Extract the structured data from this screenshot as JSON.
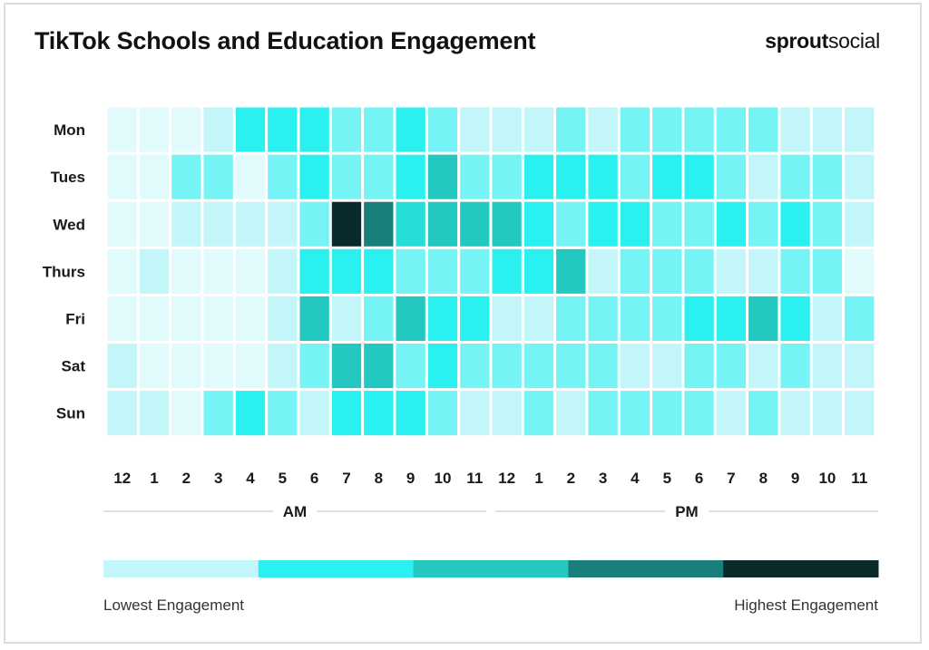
{
  "title": "TikTok Schools and Education Engagement",
  "brand": {
    "bold": "sprout",
    "light": "social"
  },
  "chart_data": {
    "type": "heatmap",
    "title": "TikTok Schools and Education Engagement",
    "rows": [
      "Mon",
      "Tues",
      "Wed",
      "Thurs",
      "Fri",
      "Sat",
      "Sun"
    ],
    "columns": [
      "12",
      "1",
      "2",
      "3",
      "4",
      "5",
      "6",
      "7",
      "8",
      "9",
      "10",
      "11",
      "12",
      "1",
      "2",
      "3",
      "4",
      "5",
      "6",
      "7",
      "8",
      "9",
      "10",
      "11"
    ],
    "periods": [
      {
        "label": "AM",
        "start": 0,
        "end": 11
      },
      {
        "label": "PM",
        "start": 12,
        "end": 23
      }
    ],
    "values": [
      [
        0.5,
        0.5,
        0.5,
        1.0,
        2.0,
        2.0,
        2.0,
        1.5,
        1.5,
        2.0,
        1.5,
        1.0,
        1.0,
        1.0,
        1.5,
        1.0,
        1.5,
        1.5,
        1.5,
        1.5,
        1.5,
        1.0,
        1.0,
        1.0
      ],
      [
        0.5,
        0.5,
        1.5,
        1.5,
        0.5,
        1.5,
        2.0,
        1.5,
        1.5,
        2.0,
        3.0,
        1.5,
        1.5,
        2.0,
        2.0,
        2.0,
        1.5,
        2.0,
        2.0,
        1.5,
        1.0,
        1.5,
        1.5,
        1.0
      ],
      [
        0.5,
        0.5,
        1.0,
        1.0,
        1.0,
        1.0,
        1.5,
        5.0,
        4.0,
        2.5,
        3.0,
        3.0,
        3.0,
        2.0,
        1.5,
        2.0,
        2.0,
        1.5,
        1.5,
        2.0,
        1.5,
        2.0,
        1.5,
        1.0
      ],
      [
        0.5,
        1.0,
        0.5,
        0.5,
        0.5,
        1.0,
        2.0,
        2.0,
        2.0,
        1.5,
        1.5,
        1.5,
        2.0,
        2.0,
        3.0,
        1.0,
        1.5,
        1.5,
        1.5,
        1.0,
        1.0,
        1.5,
        1.5,
        0.5
      ],
      [
        0.5,
        0.5,
        0.5,
        0.5,
        0.5,
        1.0,
        3.0,
        1.0,
        1.5,
        3.0,
        2.0,
        2.0,
        1.0,
        1.0,
        1.5,
        1.5,
        1.5,
        1.5,
        2.0,
        2.0,
        3.0,
        2.0,
        1.0,
        1.5
      ],
      [
        1.0,
        0.5,
        0.5,
        0.5,
        0.5,
        1.0,
        1.5,
        3.0,
        3.0,
        1.5,
        2.0,
        1.5,
        1.5,
        1.5,
        1.5,
        1.5,
        1.0,
        1.0,
        1.5,
        1.5,
        1.0,
        1.5,
        1.0,
        1.0
      ],
      [
        1.0,
        1.0,
        0.5,
        1.5,
        2.0,
        1.5,
        1.0,
        2.0,
        2.0,
        2.0,
        1.5,
        1.0,
        1.0,
        1.5,
        1.0,
        1.5,
        1.5,
        1.5,
        1.5,
        1.0,
        1.5,
        1.0,
        1.0,
        1.0
      ]
    ],
    "value_range": [
      0,
      5
    ],
    "legend": {
      "steps": 5,
      "colors": [
        "#c2f6f9",
        "#2af0ef",
        "#23c9c0",
        "#1a7f7a",
        "#0b2a2b"
      ],
      "low_label": "Lowest Engagement",
      "high_label": "Highest Engagement"
    },
    "cell_color_stops": [
      {
        "v": 0.0,
        "color": "#ffffff"
      },
      {
        "v": 1.0,
        "color": "#c2f6f9"
      },
      {
        "v": 2.0,
        "color": "#2af0ef"
      },
      {
        "v": 3.0,
        "color": "#23c9c0"
      },
      {
        "v": 4.0,
        "color": "#1a7f7a"
      },
      {
        "v": 5.0,
        "color": "#0b2a2b"
      }
    ]
  }
}
